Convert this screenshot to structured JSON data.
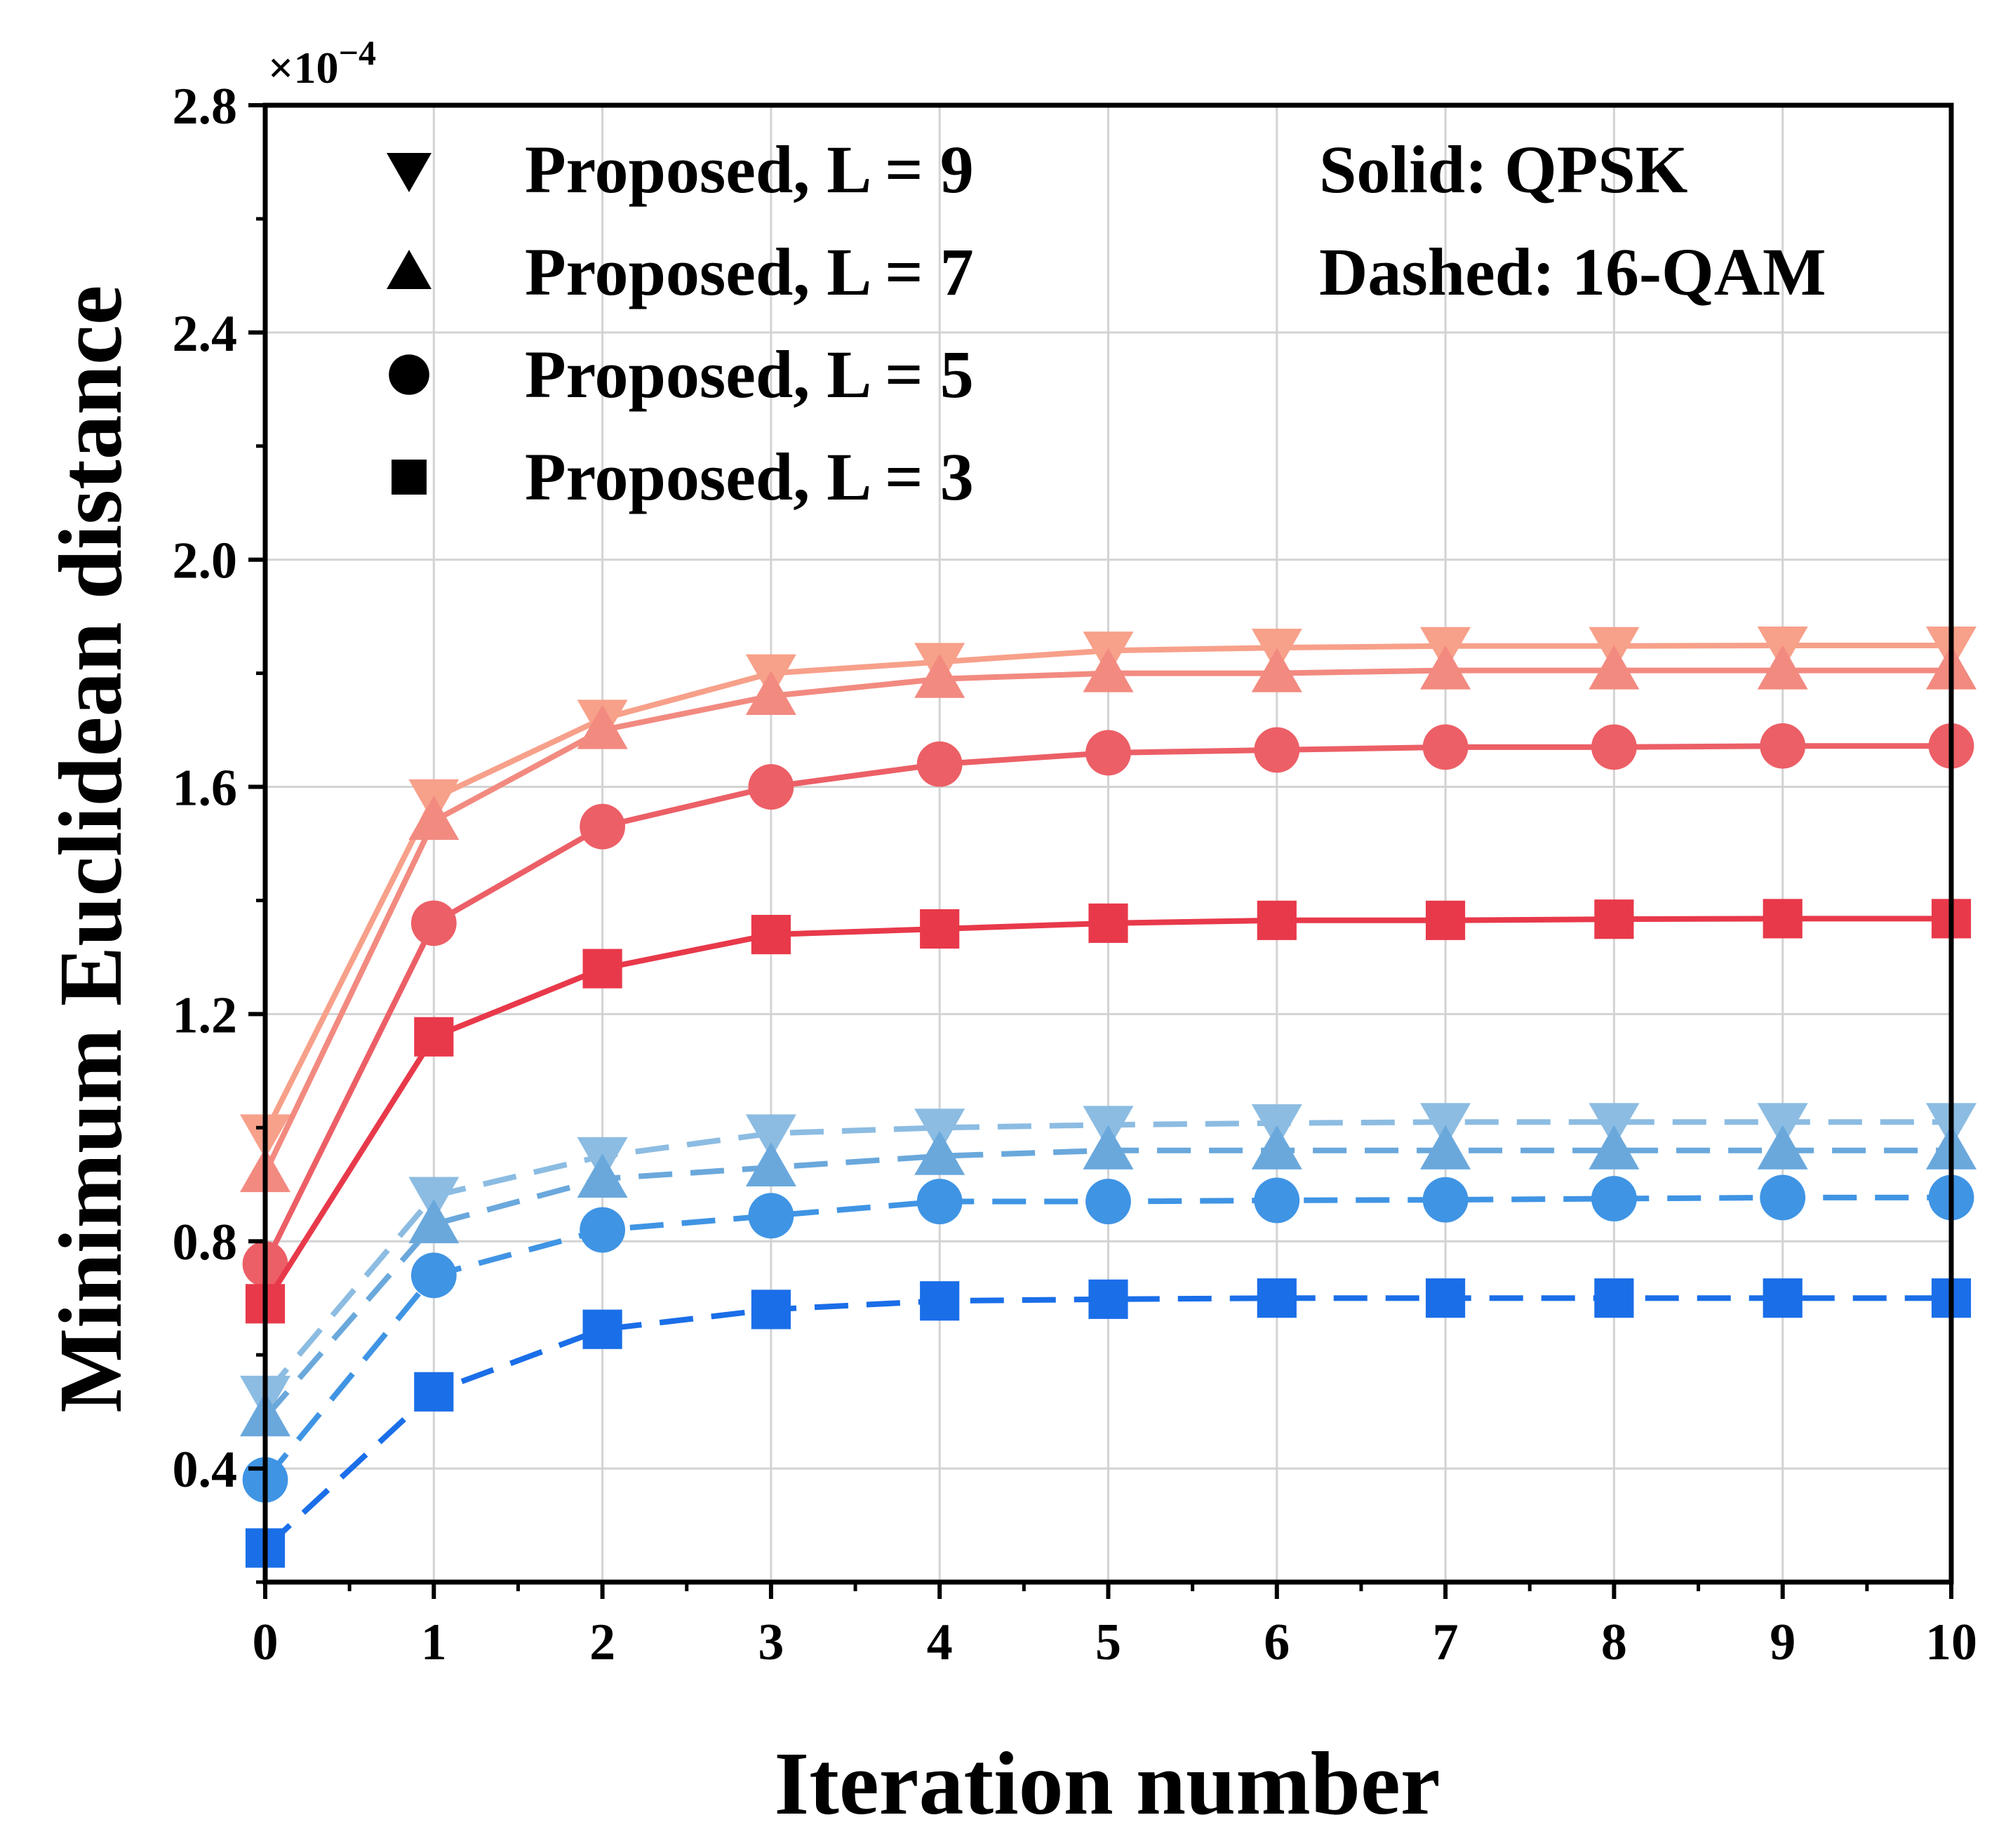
{
  "chart_data": {
    "type": "line",
    "title": "",
    "xlabel": "Iteration number",
    "ylabel": "Minimum Euclidean distance",
    "y_multiplier": "×10",
    "y_multiplier_exp": "−4",
    "xlim": [
      0,
      10
    ],
    "ylim": [
      0.2,
      2.8
    ],
    "x_ticks": [
      "0",
      "1",
      "2",
      "3",
      "4",
      "5",
      "6",
      "7",
      "8",
      "9",
      "10"
    ],
    "y_ticks": [
      "0.4",
      "0.8",
      "1.2",
      "1.6",
      "2.0",
      "2.4",
      "2.8"
    ],
    "grid": true,
    "legend": {
      "placement": "top-left",
      "entries": [
        {
          "label": "Proposed, L = 9",
          "marker": "triangle-down"
        },
        {
          "label": "Proposed, L = 7",
          "marker": "triangle-up"
        },
        {
          "label": "Proposed, L = 5",
          "marker": "circle"
        },
        {
          "label": "Proposed, L = 3",
          "marker": "square"
        }
      ]
    },
    "annotations": [
      "Solid: QPSK",
      "Dashed: 16-QAM"
    ],
    "x": [
      0,
      1,
      2,
      3,
      4,
      5,
      6,
      7,
      8,
      9,
      10
    ],
    "series": [
      {
        "name": "QPSK, L = 9",
        "modulation": "QPSK",
        "L": 9,
        "style": "solid",
        "marker": "triangle-down",
        "color": "#f7a08a",
        "values": [
          0.99,
          1.58,
          1.72,
          1.8,
          1.82,
          1.84,
          1.845,
          1.848,
          1.848,
          1.849,
          1.849
        ]
      },
      {
        "name": "QPSK, L = 7",
        "modulation": "QPSK",
        "L": 7,
        "style": "solid",
        "marker": "triangle-up",
        "color": "#f28a80",
        "values": [
          0.92,
          1.54,
          1.7,
          1.76,
          1.79,
          1.8,
          1.8,
          1.805,
          1.805,
          1.805,
          1.805
        ]
      },
      {
        "name": "QPSK, L = 5",
        "modulation": "QPSK",
        "L": 5,
        "style": "solid",
        "marker": "circle",
        "color": "#ec5f66",
        "values": [
          0.76,
          1.36,
          1.53,
          1.6,
          1.64,
          1.66,
          1.665,
          1.67,
          1.67,
          1.672,
          1.672
        ]
      },
      {
        "name": "QPSK, L = 3",
        "modulation": "QPSK",
        "L": 3,
        "style": "solid",
        "marker": "square",
        "color": "#e8394a",
        "values": [
          0.69,
          1.16,
          1.28,
          1.34,
          1.35,
          1.36,
          1.365,
          1.365,
          1.367,
          1.368,
          1.368
        ]
      },
      {
        "name": "16-QAM, L = 9",
        "modulation": "16-QAM",
        "L": 9,
        "style": "dashed",
        "marker": "triangle-down",
        "color": "#8cbce2",
        "values": [
          0.53,
          0.88,
          0.95,
          0.99,
          1.0,
          1.005,
          1.008,
          1.01,
          1.01,
          1.01,
          1.01
        ]
      },
      {
        "name": "16-QAM, L = 7",
        "modulation": "16-QAM",
        "L": 7,
        "style": "dashed",
        "marker": "triangle-up",
        "color": "#6aa8dc",
        "values": [
          0.49,
          0.83,
          0.91,
          0.93,
          0.95,
          0.96,
          0.96,
          0.96,
          0.96,
          0.96,
          0.96
        ]
      },
      {
        "name": "16-QAM, L = 5",
        "modulation": "16-QAM",
        "L": 5,
        "style": "dashed",
        "marker": "circle",
        "color": "#3f94e4",
        "values": [
          0.38,
          0.74,
          0.82,
          0.845,
          0.87,
          0.87,
          0.872,
          0.873,
          0.875,
          0.877,
          0.877
        ]
      },
      {
        "name": "16-QAM, L = 3",
        "modulation": "16-QAM",
        "L": 3,
        "style": "dashed",
        "marker": "square",
        "color": "#1a6ee8",
        "values": [
          0.26,
          0.535,
          0.645,
          0.68,
          0.695,
          0.698,
          0.7,
          0.7,
          0.7,
          0.7,
          0.7
        ]
      }
    ]
  }
}
